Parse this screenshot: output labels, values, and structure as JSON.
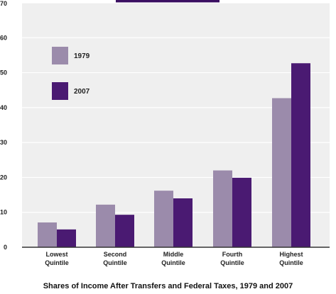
{
  "colors": {
    "series_1979": "#9b8bab",
    "series_2007": "#4a1a72",
    "plot_background": "#efefef",
    "header_bar": "#3b0f62"
  },
  "caption": "Shares of Income After Transfers and Federal Taxes, 1979 and 2007",
  "chart_data": {
    "type": "bar",
    "title": "Shares of Income After Transfers and Federal Taxes, 1979 and 2007",
    "xlabel": "",
    "ylabel": "",
    "ylim": [
      0,
      70
    ],
    "yticks": [
      0,
      10,
      20,
      30,
      40,
      50,
      60,
      70
    ],
    "grid": true,
    "legend_position": "top-left",
    "categories": [
      [
        "Lowest",
        "Quintile"
      ],
      [
        "Second",
        "Quintile"
      ],
      [
        "Middle",
        "Quintile"
      ],
      [
        "Fourth",
        "Quintile"
      ],
      [
        "Highest",
        "Quintile"
      ]
    ],
    "series": [
      {
        "name": "1979",
        "color": "#9b8bab",
        "values": [
          7.1,
          12.2,
          16.2,
          22.0,
          42.7
        ]
      },
      {
        "name": "2007",
        "color": "#4a1a72",
        "values": [
          5.1,
          9.3,
          14.0,
          19.9,
          52.7
        ]
      }
    ]
  }
}
